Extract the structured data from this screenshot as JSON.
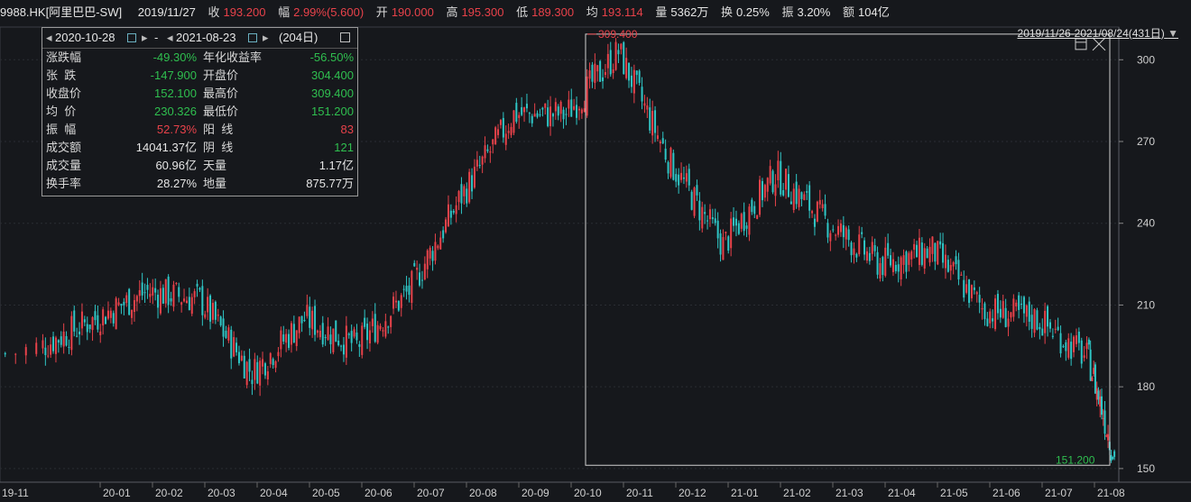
{
  "header": {
    "symbol": "9988.HK[阿里巴巴-SW]",
    "date": "2019/11/27",
    "close_label": "收",
    "close_value": "193.200",
    "change_label": "幅",
    "change_value": "2.99%(5.600)",
    "open_label": "开",
    "open_value": "190.000",
    "high_label": "高",
    "high_value": "195.300",
    "low_label": "低",
    "low_value": "189.300",
    "avg_label": "均",
    "avg_value": "193.114",
    "volume_label": "量",
    "volume_value": "5362万",
    "turnover_label": "换",
    "turnover_value": "0.25%",
    "amplitude_label": "振",
    "amplitude_value": "3.20%",
    "amount_label": "额",
    "amount_value": "104亿"
  },
  "range_label": "2019/11/26-2021/08/24(431日)",
  "panel": {
    "start_date": "2020-10-28",
    "sep": "-",
    "end_date": "2021-08-23",
    "days": "(204日)",
    "rows": [
      {
        "l1": "涨跌幅",
        "v1": "-49.30%",
        "c1": "green",
        "l2": "年化收益率",
        "v2": "-56.50%",
        "c2": "green"
      },
      {
        "l1": "张  跌",
        "v1": "-147.900",
        "c1": "green",
        "l2": "开盘价",
        "v2": "304.400",
        "c2": "green"
      },
      {
        "l1": "收盘价",
        "v1": "152.100",
        "c1": "green",
        "l2": "最高价",
        "v2": "309.400",
        "c2": "green"
      },
      {
        "l1": "均  价",
        "v1": "230.326",
        "c1": "green",
        "l2": "最低价",
        "v2": "151.200",
        "c2": "green"
      },
      {
        "l1": "振  幅",
        "v1": "52.73%",
        "c1": "red",
        "l2": "阳  线",
        "v2": "83",
        "c2": "red"
      },
      {
        "l1": "成交额",
        "v1": "14041.37亿",
        "c1": "white",
        "l2": "阴  线",
        "v2": "121",
        "c2": "green"
      },
      {
        "l1": "成交量",
        "v1": "60.96亿",
        "c1": "white",
        "l2": "天量",
        "v2": "1.17亿",
        "c2": "white"
      },
      {
        "l1": "换手率",
        "v1": "28.27%",
        "c1": "white",
        "l2": "地量",
        "v2": "875.77万",
        "c2": "white"
      }
    ]
  },
  "colors": {
    "up": "#e8424a",
    "down": "#2fc6c6",
    "background": "#16181c",
    "grid": "#2a2d33"
  },
  "chart_data": {
    "type": "candlestick",
    "ylim": [
      145,
      312
    ],
    "y_ticks": [
      150,
      180,
      210,
      240,
      270,
      300
    ],
    "x_ticks": [
      "19-11",
      "20-01",
      "20-02",
      "20-03",
      "20-04",
      "20-05",
      "20-06",
      "20-07",
      "20-08",
      "20-09",
      "20-10",
      "20-11",
      "20-12",
      "21-01",
      "21-02",
      "21-03",
      "21-04",
      "21-05",
      "21-06",
      "21-07",
      "21-08"
    ],
    "selection": {
      "high_label": "309.400",
      "low_label": "151.200",
      "high": 309.4,
      "low": 151.2
    },
    "close_series_by_month": [
      {
        "m": "19-11",
        "start": 192,
        "end": 195
      },
      {
        "m": "19-12",
        "start": 195,
        "end": 205
      },
      {
        "m": "20-01",
        "start": 205,
        "end": 215
      },
      {
        "m": "20-02",
        "start": 215,
        "end": 212
      },
      {
        "m": "20-03",
        "start": 212,
        "end": 185
      },
      {
        "m": "20-04",
        "start": 185,
        "end": 205
      },
      {
        "m": "20-05",
        "start": 205,
        "end": 195
      },
      {
        "m": "20-06",
        "start": 195,
        "end": 215
      },
      {
        "m": "20-07",
        "start": 215,
        "end": 250
      },
      {
        "m": "20-08",
        "start": 250,
        "end": 280
      },
      {
        "m": "20-09",
        "start": 280,
        "end": 280
      },
      {
        "m": "20-10",
        "start": 280,
        "end": 303
      },
      {
        "m": "20-11",
        "start": 303,
        "end": 262
      },
      {
        "m": "20-12",
        "start": 262,
        "end": 232
      },
      {
        "m": "21-01",
        "start": 232,
        "end": 258
      },
      {
        "m": "21-02",
        "start": 258,
        "end": 240
      },
      {
        "m": "21-03",
        "start": 240,
        "end": 225
      },
      {
        "m": "21-04",
        "start": 225,
        "end": 230
      },
      {
        "m": "21-05",
        "start": 230,
        "end": 208
      },
      {
        "m": "21-06",
        "start": 208,
        "end": 205
      },
      {
        "m": "21-07",
        "start": 205,
        "end": 190
      },
      {
        "m": "21-08",
        "start": 190,
        "end": 152
      }
    ]
  }
}
